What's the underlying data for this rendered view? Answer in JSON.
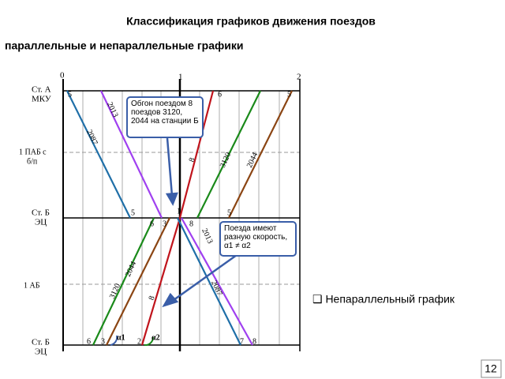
{
  "header": {
    "title": "Классификация графиков движения поездов",
    "subtitle": "параллельные и непараллельные графики"
  },
  "diagram": {
    "time_labels": [
      "0",
      "1",
      "2"
    ],
    "stations": [
      "Ст. А",
      "МКУ",
      "1 ПАБ с",
      "б/п",
      "Ст. Б",
      "ЭЦ",
      "1 АБ",
      "Ст. Б",
      "ЭЦ"
    ],
    "train_labels": [
      "2087",
      "2013",
      "8",
      "3120",
      "2044",
      "3120",
      "2044",
      "8",
      "2013",
      "2087"
    ],
    "end_labels": [
      "5",
      "6",
      "5",
      "5",
      "5",
      "6",
      "3",
      "1",
      "8",
      "6",
      "3",
      "2",
      "7",
      "8"
    ],
    "angles": [
      "α1",
      "α2"
    ]
  },
  "callouts": [
    {
      "text": "Обгон поездом 8 поездов 3120, 2044 на станции Б"
    },
    {
      "text": "Поезда имеют разную скорость, α1 ≠ α2"
    }
  ],
  "note": "❑ Непараллельный график",
  "page_number": "12"
}
